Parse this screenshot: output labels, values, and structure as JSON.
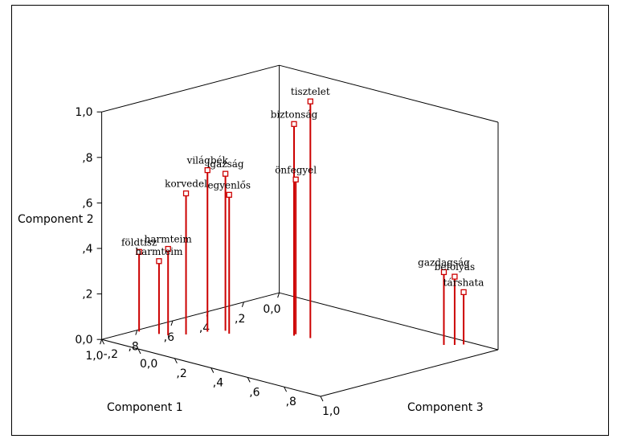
{
  "chart_data": {
    "type": "scatter",
    "projection": "3d",
    "xlabel": "Component 1",
    "ylabel": "Component 2",
    "zlabel": "Component 3",
    "x_ticks": [
      "0,0",
      ",2",
      ",4",
      ",6",
      ",8",
      "1,0"
    ],
    "y_ticks": [
      "0,0",
      ",2",
      ",4",
      ",6",
      ",8",
      "1,0"
    ],
    "z_ticks": [
      "-,2",
      "0,0",
      ",2",
      ",4",
      ",6",
      ",8",
      "1,0"
    ],
    "xlim": [
      0,
      1
    ],
    "ylim": [
      0,
      1
    ],
    "zlim": [
      -0.2,
      1
    ],
    "marker_color": "#cc0000",
    "drop_line_color": "#cc0000",
    "points": [
      {
        "label": "földtisz",
        "x": 0.81,
        "y": 0.35,
        "z": -0.18
      },
      {
        "label": "harmteim",
        "x": 0.78,
        "y": 0.32,
        "z": -0.1
      },
      {
        "label": "harmteim",
        "x": 0.77,
        "y": 0.38,
        "z": -0.06
      },
      {
        "label": "világbék",
        "x": 0.62,
        "y": 0.71,
        "z": 0.01
      },
      {
        "label": "igazság",
        "x": 0.56,
        "y": 0.69,
        "z": 0.05
      },
      {
        "label": "egyenlős",
        "x": 0.58,
        "y": 0.61,
        "z": 0.09
      },
      {
        "label": "korvedel",
        "x": 0.71,
        "y": 0.62,
        "z": -0.02
      },
      {
        "label": "önfegyel",
        "x": 0.4,
        "y": 0.68,
        "z": 0.28
      },
      {
        "label": "biztonság",
        "x": 0.42,
        "y": 0.93,
        "z": 0.29
      },
      {
        "label": "tisztelet",
        "x": 0.4,
        "y": 1.04,
        "z": 0.36
      },
      {
        "label": "gazdagság",
        "x": 0.1,
        "y": 0.32,
        "z": 0.8
      },
      {
        "label": "befolyás",
        "x": 0.07,
        "y": 0.3,
        "z": 0.83
      },
      {
        "label": "társhata",
        "x": 0.04,
        "y": 0.23,
        "z": 0.85
      }
    ]
  }
}
